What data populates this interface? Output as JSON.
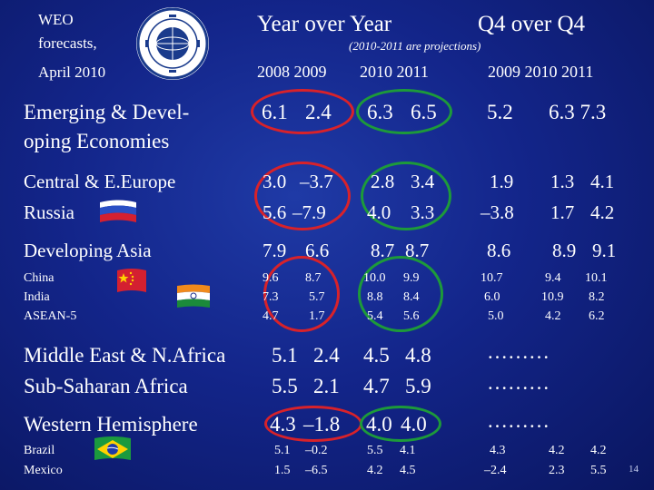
{
  "header": {
    "weo_line1": "WEO",
    "weo_line2": "forecasts,",
    "weo_line3": "April 2010",
    "yoy_title": "Year over Year",
    "q4_title": "Q4 over Q4",
    "note": "(2010-2011 are projections)",
    "yoy_years": "2008 2009",
    "yoy_years_proj": "2010 2011",
    "q4_years": "2009   2010 2011"
  },
  "rows": {
    "emerging": {
      "label1": "Emerging & Devel-",
      "label2": "oping Economies",
      "v1": "6.1",
      "v2": "2.4",
      "v3": "6.3",
      "v4": "6.5",
      "q1": "5.2",
      "q2": "6.3 7.3"
    },
    "ce_europe": {
      "label": "Central & E.Europe",
      "v1": "3.0",
      "v2": "–3.7",
      "v3": "2.8",
      "v4": "3.4",
      "q1": "1.9",
      "q2": "1.3",
      "q3": "4.1"
    },
    "russia": {
      "label": "Russia",
      "v1": "5.6",
      "v2": "–7.9",
      "v3": "4.0",
      "v4": "3.3",
      "q1": "–3.8",
      "q2": "1.7",
      "q3": "4.2"
    },
    "dev_asia": {
      "label": "Developing Asia",
      "v1": "7.9",
      "v2": "6.6",
      "v3": "8.7",
      "v4": "8.7",
      "q1": "8.6",
      "q2": "8.9",
      "q3": "9.1"
    },
    "asia_sub": {
      "labels": [
        "China",
        "India",
        "ASEAN-5"
      ],
      "c1": [
        "9.6",
        "7.3",
        "4.7"
      ],
      "c2": [
        "8.7",
        "5.7",
        "1.7"
      ],
      "c3": [
        "10.0",
        "8.8",
        "5.4"
      ],
      "c4": [
        "9.9",
        "8.4",
        "5.6"
      ],
      "q1": [
        "10.7",
        "6.0",
        "5.0"
      ],
      "q2": [
        "9.4",
        "10.9",
        "4.2"
      ],
      "q3": [
        "10.1",
        "8.2",
        "6.2"
      ]
    },
    "mena": {
      "label": "Middle East & N.Africa",
      "v1": "5.1",
      "v2": "2.4",
      "v3": "4.5",
      "v4": "4.8",
      "dots": "………"
    },
    "ssa": {
      "label": "Sub-Saharan Africa",
      "v1": "5.5",
      "v2": "2.1",
      "v3": "4.7",
      "v4": "5.9",
      "dots": "………"
    },
    "west": {
      "label": "Western Hemisphere",
      "v1": "4.3",
      "v2": "–1.8",
      "v3": "4.0",
      "v4": "4.0",
      "dots": "………"
    },
    "brazil": {
      "label": "Brazil",
      "v1": "5.1",
      "v2": "–0.2",
      "v3": "5.5",
      "v4": "4.1",
      "q1": "4.3",
      "q2": "4.2",
      "q3": "4.2"
    },
    "mexico": {
      "label": "Mexico",
      "v1": "1.5",
      "v2": "–6.5",
      "v3": "4.2",
      "v4": "4.5",
      "q1": "–2.4",
      "q2": "2.3",
      "q3": "5.5"
    }
  },
  "slide_number": "14",
  "colors": {
    "ring_red": "#d8222a",
    "ring_green": "#1d9a3a",
    "background": "#13258a"
  }
}
